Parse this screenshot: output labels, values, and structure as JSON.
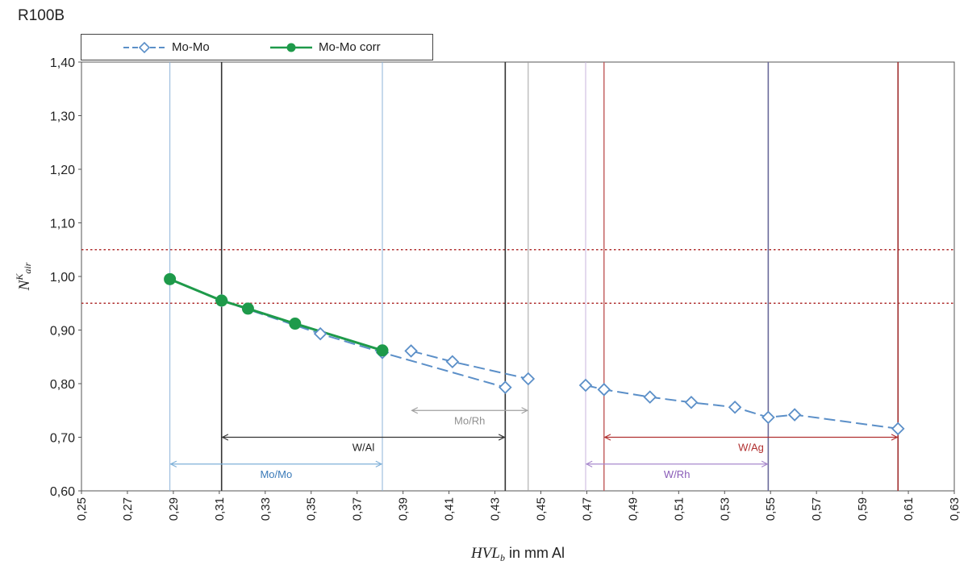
{
  "title": "R100B",
  "legend": [
    {
      "label": "Mo-Mo",
      "color": "#5b8fc8",
      "style": "dashed-diamond"
    },
    {
      "label": "Mo-Mo corr",
      "color": "#1e9a4a",
      "style": "solid-circle"
    }
  ],
  "chart_data": {
    "type": "line",
    "title": "R100B",
    "xlabel_main": "HVL",
    "xlabel_sub": "b",
    "xlabel_rest": " in mm Al",
    "ylabel_main": "N",
    "ylabel_sup": "K",
    "ylabel_sub": "air",
    "xlim": [
      0.25,
      0.63
    ],
    "ylim": [
      0.6,
      1.4
    ],
    "xticks": [
      "0,25",
      "0,27",
      "0,29",
      "0,31",
      "0,33",
      "0,35",
      "0,37",
      "0,39",
      "0,41",
      "0,43",
      "0,45",
      "0,47",
      "0,49",
      "0,51",
      "0,53",
      "0,55",
      "0,57",
      "0,59",
      "0,61",
      "0,63"
    ],
    "xtick_values": [
      0.25,
      0.27,
      0.29,
      0.31,
      0.33,
      0.35,
      0.37,
      0.39,
      0.41,
      0.43,
      0.45,
      0.47,
      0.49,
      0.51,
      0.53,
      0.55,
      0.57,
      0.59,
      0.61,
      0.63
    ],
    "yticks": [
      "0,60",
      "0,70",
      "0,80",
      "0,90",
      "1,00",
      "1,10",
      "1,20",
      "1,30",
      "1,40"
    ],
    "ytick_values": [
      0.6,
      0.7,
      0.8,
      0.9,
      1.0,
      1.1,
      1.2,
      1.3,
      1.4
    ],
    "reference_lines": [
      1.05,
      0.95
    ],
    "series": [
      {
        "name": "Mo-Mo",
        "color": "#5b8fc8",
        "segments": [
          {
            "x": [
              0.311,
              0.354,
              0.381,
              0.4345
            ],
            "y": [
              0.955,
              0.893,
              0.858,
              0.793
            ]
          },
          {
            "x": [
              0.3935,
              0.4115,
              0.4445
            ],
            "y": [
              0.861,
              0.841,
              0.809
            ]
          },
          {
            "x": [
              0.4695,
              0.4775,
              0.4975,
              0.5155,
              0.5345,
              0.549,
              0.5605,
              0.6055
            ],
            "y": [
              0.797,
              0.789,
              0.775,
              0.765,
              0.756,
              0.737,
              0.742,
              0.716
            ]
          }
        ]
      },
      {
        "name": "Mo-Mo corr",
        "color": "#1e9a4a",
        "segments": [
          {
            "x": [
              0.2885,
              0.311,
              0.3225,
              0.343,
              0.381
            ],
            "y": [
              0.995,
              0.955,
              0.94,
              0.912,
              0.862
            ]
          }
        ]
      }
    ],
    "vertical_lines": [
      {
        "x": 0.2885,
        "color": "#8fb3d9",
        "width": 1
      },
      {
        "x": 0.311,
        "color": "#333333",
        "width": 1.6
      },
      {
        "x": 0.381,
        "color": "#8fb3d9",
        "width": 1
      },
      {
        "x": 0.4345,
        "color": "#333333",
        "width": 1.6
      },
      {
        "x": 0.4445,
        "color": "#a0a0a0",
        "width": 1
      },
      {
        "x": 0.4695,
        "color": "#c7b3de",
        "width": 1
      },
      {
        "x": 0.4775,
        "color": "#c05a5a",
        "width": 1.4
      },
      {
        "x": 0.549,
        "color": "#6a6a9a",
        "width": 1.6
      },
      {
        "x": 0.6055,
        "color": "#a03030",
        "width": 1.6
      }
    ],
    "ranges": [
      {
        "label": "W/Al",
        "x1": 0.311,
        "x2": 0.4345,
        "y": 0.7,
        "color": "#333333",
        "label_color": "#222222"
      },
      {
        "label": "Mo/Mo",
        "x1": 0.2885,
        "x2": 0.381,
        "y": 0.65,
        "color": "#7fb0d8",
        "label_color": "#3a7ab8"
      },
      {
        "label": "Mo/Rh",
        "x1": 0.3935,
        "x2": 0.4445,
        "y": 0.75,
        "color": "#a0a0a0",
        "label_color": "#909090"
      },
      {
        "label": "W/Ag",
        "x1": 0.4775,
        "x2": 0.6055,
        "y": 0.7,
        "color": "#b03030",
        "label_color": "#b03030"
      },
      {
        "label": "W/Rh",
        "x1": 0.4695,
        "x2": 0.549,
        "y": 0.65,
        "color": "#a889cc",
        "label_color": "#8a5cb8"
      }
    ]
  }
}
